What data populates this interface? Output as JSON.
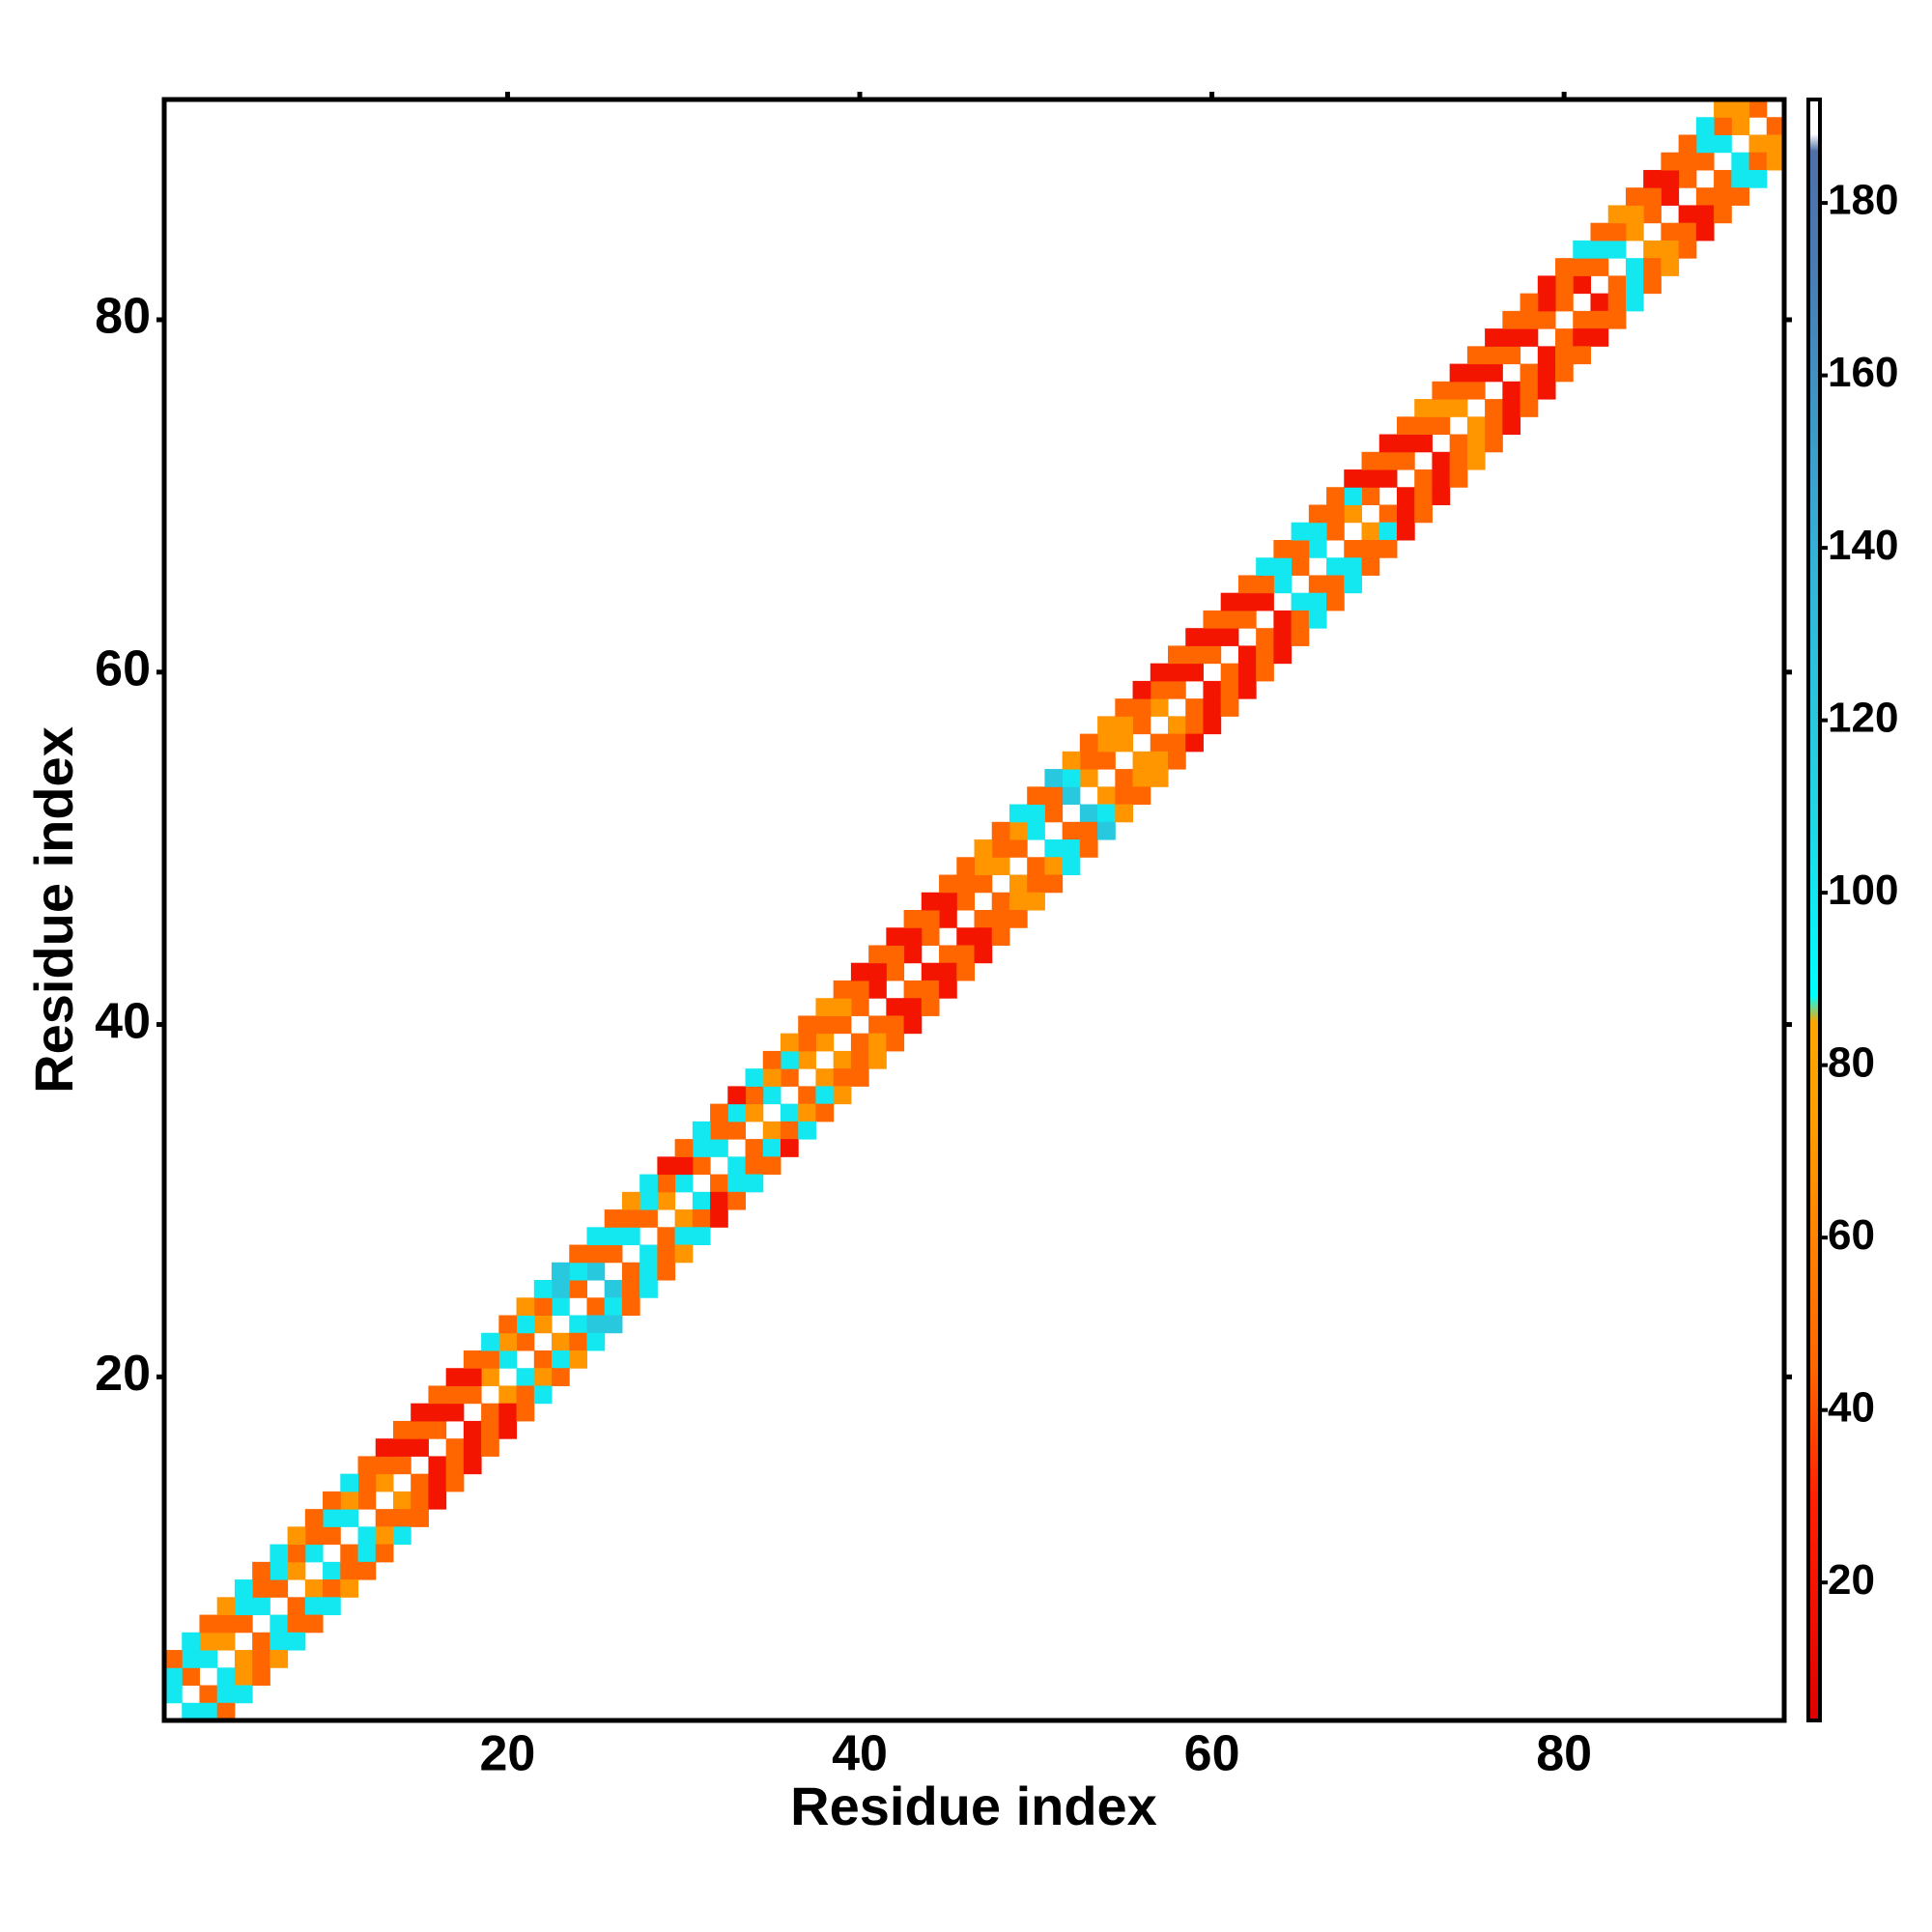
{
  "chart_data": {
    "type": "heatmap",
    "xlabel": "Residue index",
    "ylabel": "Residue index",
    "xlim": [
      0.5,
      92.5
    ],
    "ylim": [
      0.5,
      92.5
    ],
    "xticks": [
      20,
      40,
      60,
      80
    ],
    "yticks": [
      20,
      40,
      60,
      80
    ],
    "symmetric": true,
    "diagonals": [
      {
        "offset": 1,
        "values": [
          100,
          45,
          100,
          70,
          45,
          100,
          45,
          70,
          100,
          45,
          100,
          45,
          70,
          45,
          20,
          45,
          20,
          45,
          70,
          100,
          45,
          70,
          100,
          45,
          120,
          45,
          100,
          45,
          70,
          100,
          45,
          100,
          45,
          70,
          100,
          45,
          70,
          70,
          45,
          45,
          20,
          45,
          20,
          45,
          20,
          45,
          45,
          70,
          45,
          100,
          45,
          120,
          70,
          45,
          70,
          45,
          70,
          45,
          20,
          45,
          20,
          45,
          20,
          100,
          45,
          100,
          45,
          70,
          45,
          20,
          45,
          20,
          45,
          70,
          45,
          20,
          45,
          20,
          45,
          45,
          20,
          45,
          100,
          70,
          45,
          20,
          45,
          45,
          100,
          70,
          45
        ]
      },
      {
        "offset": 2,
        "values": [
          100,
          100,
          70,
          45,
          100,
          45,
          100,
          45,
          45,
          100,
          70,
          45,
          45,
          20,
          45,
          20,
          45,
          20,
          45,
          70,
          100,
          45,
          120,
          100,
          45,
          100,
          45,
          100,
          45,
          20,
          100,
          45,
          100,
          45,
          70,
          100,
          45,
          45,
          70,
          45,
          20,
          45,
          20,
          45,
          20,
          45,
          70,
          45,
          70,
          100,
          45,
          100,
          45,
          70,
          70,
          45,
          45,
          20,
          45,
          20,
          45,
          20,
          45,
          100,
          45,
          100,
          45,
          100,
          20,
          45,
          20,
          45,
          70,
          45,
          20,
          45,
          20,
          45,
          20,
          45,
          45,
          100,
          45,
          70,
          45,
          20,
          45,
          100,
          45,
          70
        ]
      },
      {
        "offset": 3,
        "values": [
          45,
          100,
          45,
          70,
          100,
          45,
          100,
          70,
          45,
          45,
          100,
          45,
          20,
          45,
          20,
          45,
          20,
          45,
          100,
          45,
          70,
          100,
          120,
          45,
          100,
          45,
          70,
          100,
          20,
          45,
          100,
          45,
          20,
          100,
          45,
          70,
          45,
          70,
          45,
          20,
          45,
          20,
          45,
          20,
          45,
          45,
          70,
          45,
          100,
          45,
          120,
          70,
          45,
          70,
          45,
          20,
          20,
          45,
          20,
          45,
          20,
          45,
          100,
          45,
          100,
          45,
          45,
          20,
          45,
          20,
          45,
          70,
          45,
          20,
          45,
          20,
          45,
          45,
          20,
          45,
          100,
          45,
          70,
          45,
          20,
          45,
          45,
          100,
          70
        ]
      }
    ],
    "colorbar": {
      "lim": [
        4,
        192
      ],
      "ticks": [
        20,
        40,
        60,
        80,
        100,
        120,
        140,
        160,
        180
      ],
      "colorscale": [
        [
          4,
          "#e00000"
        ],
        [
          30,
          "#ff2200"
        ],
        [
          45,
          "#ff6600"
        ],
        [
          75,
          "#ffa000"
        ],
        [
          85,
          "#ffa500"
        ],
        [
          88,
          "#00ffff"
        ],
        [
          110,
          "#22d4e4"
        ],
        [
          140,
          "#35b0d6"
        ],
        [
          175,
          "#4a78b0"
        ],
        [
          186,
          "#5070a8"
        ],
        [
          188,
          "#ffffff"
        ],
        [
          192,
          "#ffffff"
        ]
      ]
    }
  }
}
